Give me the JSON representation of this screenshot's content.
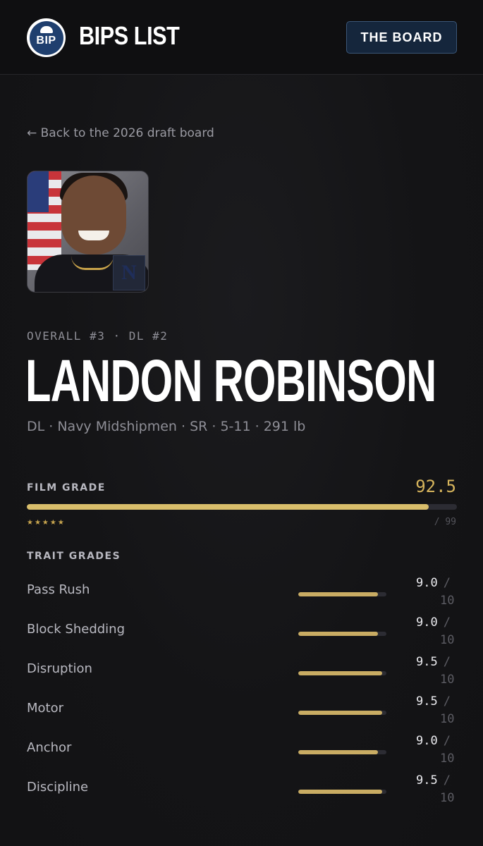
{
  "header": {
    "logo_text": "BIP",
    "brand": "BIPS LIST",
    "board_button": "THE BOARD"
  },
  "back_link": "← Back to the 2026 draft board",
  "player": {
    "rank_line": "OVERALL #3 · DL #2",
    "name": "LANDON ROBINSON",
    "meta": "DL · Navy Midshipmen · SR · 5-11 · 291 lb",
    "team_logo_letter": "N"
  },
  "film_grade": {
    "label": "FILM GRADE",
    "value": "92.5",
    "stars": "★★★★★",
    "max_label": "/ 99",
    "fraction": 0.934
  },
  "trait_grades": {
    "label": "TRAIT GRADES",
    "items": [
      {
        "name": "Pass Rush",
        "score": "9.0",
        "slash": "/",
        "max": "10",
        "fraction": 0.9
      },
      {
        "name": "Block Shedding",
        "score": "9.0",
        "slash": "/",
        "max": "10",
        "fraction": 0.9
      },
      {
        "name": "Disruption",
        "score": "9.5",
        "slash": "/",
        "max": "10",
        "fraction": 0.95
      },
      {
        "name": "Motor",
        "score": "9.5",
        "slash": "/",
        "max": "10",
        "fraction": 0.95
      },
      {
        "name": "Anchor",
        "score": "9.0",
        "slash": "/",
        "max": "10",
        "fraction": 0.9
      },
      {
        "name": "Discipline",
        "score": "9.5",
        "slash": "/",
        "max": "10",
        "fraction": 0.95
      }
    ]
  },
  "colors": {
    "accent_gold": "#d9be6b",
    "button_bg": "#15263c",
    "background": "#121214"
  }
}
